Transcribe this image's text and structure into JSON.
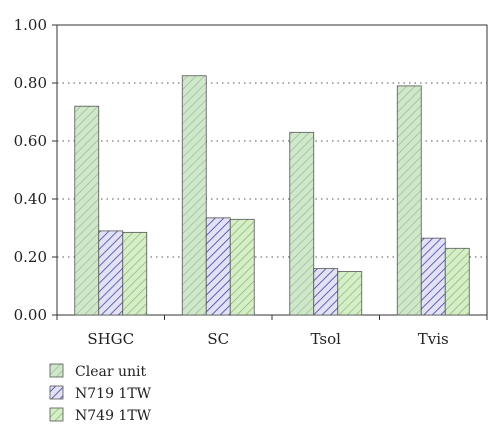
{
  "chart_data": {
    "type": "bar",
    "categories": [
      "SHGC",
      "SC",
      "Tsol",
      "Tvis"
    ],
    "series": [
      {
        "name": "Clear unit",
        "values": [
          0.72,
          0.825,
          0.63,
          0.79
        ],
        "color": "#cfe8c8",
        "hatch": "#9ab0a4"
      },
      {
        "name": "N719 1TW",
        "values": [
          0.29,
          0.335,
          0.16,
          0.265
        ],
        "color": "#e2e2f4",
        "hatch": "#3f42a0"
      },
      {
        "name": "N749 1TW",
        "values": [
          0.285,
          0.33,
          0.15,
          0.23
        ],
        "color": "#d6eec8",
        "hatch": "#7fb06a"
      }
    ],
    "ylim": [
      0,
      1.0
    ],
    "yticks": [
      "0.00",
      "0.20",
      "0.40",
      "0.60",
      "0.80",
      "1.00"
    ],
    "grid": true,
    "legend": "bottom-left",
    "title": "",
    "xlabel": "",
    "ylabel": ""
  }
}
